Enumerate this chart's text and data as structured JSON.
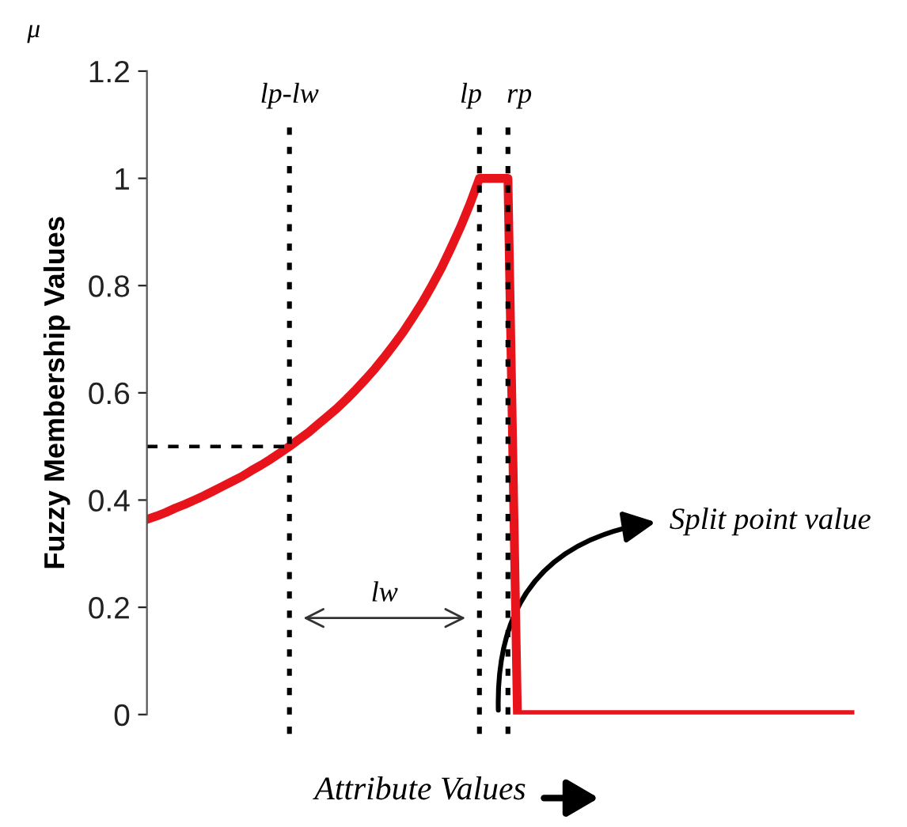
{
  "chart_data": {
    "type": "line",
    "ylabel": "Fuzzy Membership Values",
    "xlabel": "Attribute Values",
    "categories": [
      null,
      null,
      null,
      null,
      null,
      null,
      null,
      null,
      null,
      null,
      null,
      null,
      null,
      null,
      null,
      null,
      null,
      null,
      null,
      null,
      null,
      null,
      null,
      null,
      null,
      null,
      null,
      null,
      null,
      null,
      null,
      null,
      null,
      null,
      null,
      null,
      null,
      null,
      null,
      null,
      null,
      null,
      null,
      null,
      null,
      null,
      null,
      null,
      null,
      null,
      null,
      null,
      null,
      null,
      null,
      null,
      null,
      null,
      null,
      null,
      null,
      null,
      null,
      null,
      null,
      null,
      null,
      null,
      null,
      null,
      null,
      null,
      null,
      null,
      null
    ],
    "series": [
      {
        "color": "#e8141c",
        "line_style": "solid",
        "values": [
          0.364,
          0.37,
          0.377,
          0.385,
          0.392,
          0.4,
          0.408,
          0.417,
          0.426,
          0.435,
          0.444,
          0.455,
          0.465,
          0.476,
          0.488,
          0.5,
          0.513,
          0.526,
          0.541,
          0.556,
          0.571,
          0.588,
          0.606,
          0.625,
          0.645,
          0.667,
          0.69,
          0.714,
          0.741,
          0.769,
          0.8,
          0.833,
          0.87,
          0.909,
          0.952,
          1,
          1,
          1,
          1,
          0,
          0,
          0,
          0,
          0,
          0,
          0,
          0,
          0,
          0,
          0,
          0,
          0,
          0,
          0,
          0,
          0,
          0,
          0,
          0,
          0,
          0,
          0,
          0,
          0,
          0,
          0,
          0,
          0,
          0,
          0,
          0,
          0,
          0,
          0,
          0
        ]
      },
      {
        "color": "#000000",
        "line_style": "dashed",
        "values": [
          0.5,
          0.5,
          0.5,
          0.5,
          0.5,
          0.5,
          0.5,
          0.5,
          0.5,
          0.5,
          0.5,
          0.5,
          0.5,
          0.5,
          0.5,
          0.5,
          null,
          null,
          null,
          null,
          null,
          null,
          null,
          null,
          null,
          null,
          null,
          null,
          null,
          null,
          null,
          null,
          null,
          null,
          null,
          null,
          null,
          null,
          null,
          null,
          null,
          null,
          null,
          null,
          null,
          null,
          null,
          null,
          null,
          null,
          null,
          null,
          null,
          null,
          null,
          null,
          null,
          null,
          null,
          null,
          null,
          null,
          null,
          null,
          null,
          null,
          null,
          null,
          null,
          null,
          null,
          null,
          null,
          null,
          null
        ]
      }
    ],
    "annotations": [
      "μ",
      "lw",
      "Split point value",
      "lp-lw",
      "lp",
      "rp"
    ],
    "ylim": [
      0,
      1.2
    ],
    "yticks": [
      0,
      0.2,
      0.4,
      0.6,
      0.8,
      1,
      1.2
    ],
    "tick_labels": "y",
    "grid": false,
    "legend": false,
    "marker": "none"
  }
}
